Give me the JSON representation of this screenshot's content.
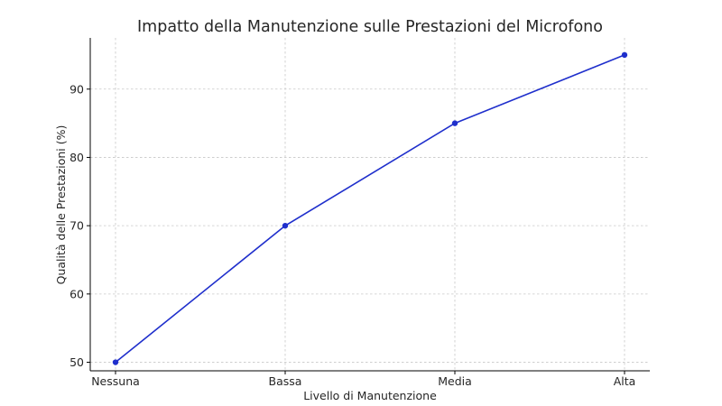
{
  "chart_data": {
    "type": "line",
    "title": "Impatto della Manutenzione sulle Prestazioni del Microfono",
    "xlabel": "Livello di Manutenzione",
    "ylabel": "Qualità delle Prestazioni (%)",
    "categories": [
      "Nessuna",
      "Bassa",
      "Media",
      "Alta"
    ],
    "series": [
      {
        "values": [
          50,
          70,
          85,
          95
        ],
        "color": "#1f2fcc"
      }
    ],
    "ylim": [
      48.75,
      97.5
    ],
    "yticks": [
      50,
      60,
      70,
      80,
      90
    ],
    "grid": true,
    "markers": "circle"
  }
}
